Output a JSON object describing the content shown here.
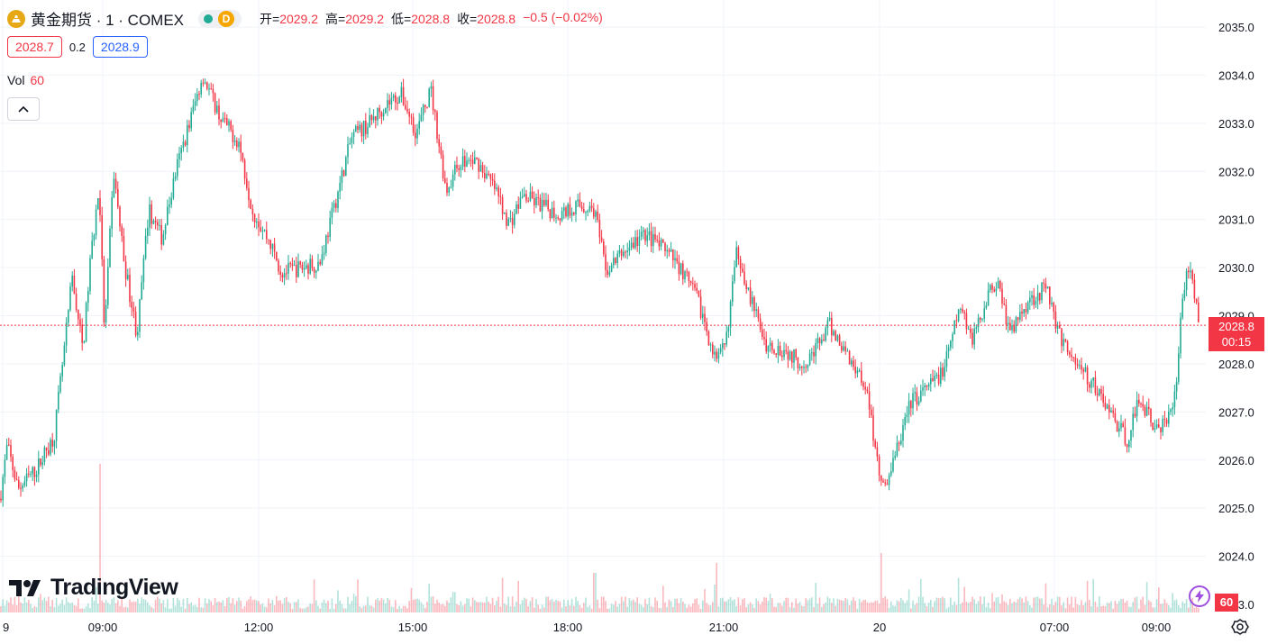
{
  "header": {
    "symbol_title": "黄金期货 · 1 · COMEX",
    "status_letter": "D",
    "ohlc": [
      {
        "label": "开=",
        "value": "2029.2"
      },
      {
        "label": "高=",
        "value": "2029.2"
      },
      {
        "label": "低=",
        "value": "2028.8"
      },
      {
        "label": "收=",
        "value": "2028.8"
      }
    ],
    "change": "−0.5 (−0.02%)"
  },
  "quote": {
    "bid": "2028.7",
    "spread": "0.2",
    "ask": "2028.9"
  },
  "volume_legend": {
    "label": "Vol",
    "value": "60"
  },
  "branding": {
    "logo_text": "TradingView"
  },
  "last_price": {
    "value": "2028.8",
    "countdown": "00:15"
  },
  "volume_tag": "60",
  "colors": {
    "up": "#22ab94",
    "down": "#f23645",
    "grid": "#f0f3fa",
    "axis_text": "#131722"
  },
  "chart_data": {
    "type": "candlestick",
    "title": "",
    "xlabel": "",
    "ylabel": "",
    "ylim": [
      2023.0,
      2035.0
    ],
    "y_ticks": [
      "2035.0",
      "2034.0",
      "2033.0",
      "2032.0",
      "2031.0",
      "2030.0",
      "2029.0",
      "2028.0",
      "2027.0",
      "2026.0",
      "2025.0",
      "2024.0",
      "2023.0"
    ],
    "x_ticks": [
      "9",
      "09:00",
      "12:00",
      "15:00",
      "18:00",
      "21:00",
      "20",
      "07:00",
      "09:00"
    ],
    "current_price": 2028.8,
    "grid": true,
    "price_path": [
      [
        0,
        2025.2
      ],
      [
        8,
        2026.3
      ],
      [
        20,
        2025.4
      ],
      [
        40,
        2025.8
      ],
      [
        60,
        2026.5
      ],
      [
        72,
        2028.4
      ],
      [
        80,
        2029.8
      ],
      [
        92,
        2028.3
      ],
      [
        100,
        2030.1
      ],
      [
        110,
        2031.7
      ],
      [
        116,
        2028.6
      ],
      [
        126,
        2032.0
      ],
      [
        138,
        2030.1
      ],
      [
        152,
        2028.6
      ],
      [
        165,
        2031.2
      ],
      [
        180,
        2030.6
      ],
      [
        195,
        2032.0
      ],
      [
        210,
        2033.0
      ],
      [
        225,
        2034.0
      ],
      [
        245,
        2033.1
      ],
      [
        265,
        2032.6
      ],
      [
        280,
        2031.2
      ],
      [
        300,
        2030.5
      ],
      [
        312,
        2029.9
      ],
      [
        335,
        2030.0
      ],
      [
        355,
        2030.1
      ],
      [
        370,
        2031.2
      ],
      [
        390,
        2032.7
      ],
      [
        410,
        2033.0
      ],
      [
        428,
        2033.4
      ],
      [
        445,
        2033.6
      ],
      [
        462,
        2032.8
      ],
      [
        478,
        2033.7
      ],
      [
        495,
        2031.6
      ],
      [
        510,
        2032.2
      ],
      [
        530,
        2032.2
      ],
      [
        550,
        2031.6
      ],
      [
        565,
        2030.9
      ],
      [
        580,
        2031.5
      ],
      [
        600,
        2031.3
      ],
      [
        620,
        2031.1
      ],
      [
        640,
        2031.3
      ],
      [
        660,
        2031.2
      ],
      [
        672,
        2029.9
      ],
      [
        690,
        2030.3
      ],
      [
        716,
        2030.7
      ],
      [
        735,
        2030.4
      ],
      [
        755,
        2030.0
      ],
      [
        775,
        2029.3
      ],
      [
        795,
        2028.0
      ],
      [
        805,
        2028.4
      ],
      [
        818,
        2030.4
      ],
      [
        832,
        2029.4
      ],
      [
        850,
        2028.4
      ],
      [
        870,
        2028.3
      ],
      [
        890,
        2028.0
      ],
      [
        905,
        2028.3
      ],
      [
        920,
        2028.8
      ],
      [
        940,
        2028.2
      ],
      [
        960,
        2027.6
      ],
      [
        972,
        2026.2
      ],
      [
        980,
        2025.4
      ],
      [
        992,
        2026.0
      ],
      [
        1010,
        2027.2
      ],
      [
        1030,
        2027.5
      ],
      [
        1048,
        2027.9
      ],
      [
        1065,
        2029.2
      ],
      [
        1080,
        2028.5
      ],
      [
        1095,
        2029.4
      ],
      [
        1108,
        2029.8
      ],
      [
        1120,
        2028.6
      ],
      [
        1140,
        2029.3
      ],
      [
        1162,
        2029.6
      ],
      [
        1175,
        2028.6
      ],
      [
        1195,
        2028.0
      ],
      [
        1215,
        2027.5
      ],
      [
        1235,
        2026.9
      ],
      [
        1250,
        2026.4
      ],
      [
        1265,
        2027.3
      ],
      [
        1280,
        2026.7
      ],
      [
        1295,
        2026.7
      ],
      [
        1305,
        2027.6
      ],
      [
        1312,
        2029.4
      ],
      [
        1320,
        2030.1
      ],
      [
        1332,
        2028.8
      ]
    ],
    "volume_spikes": [
      [
        112,
        300
      ],
      [
        660,
        80
      ],
      [
        795,
        100
      ],
      [
        978,
        120
      ],
      [
        1063,
        70
      ]
    ],
    "x_tick_positions": [
      3,
      114,
      287,
      458,
      630,
      803,
      976,
      1170,
      1283
    ]
  }
}
